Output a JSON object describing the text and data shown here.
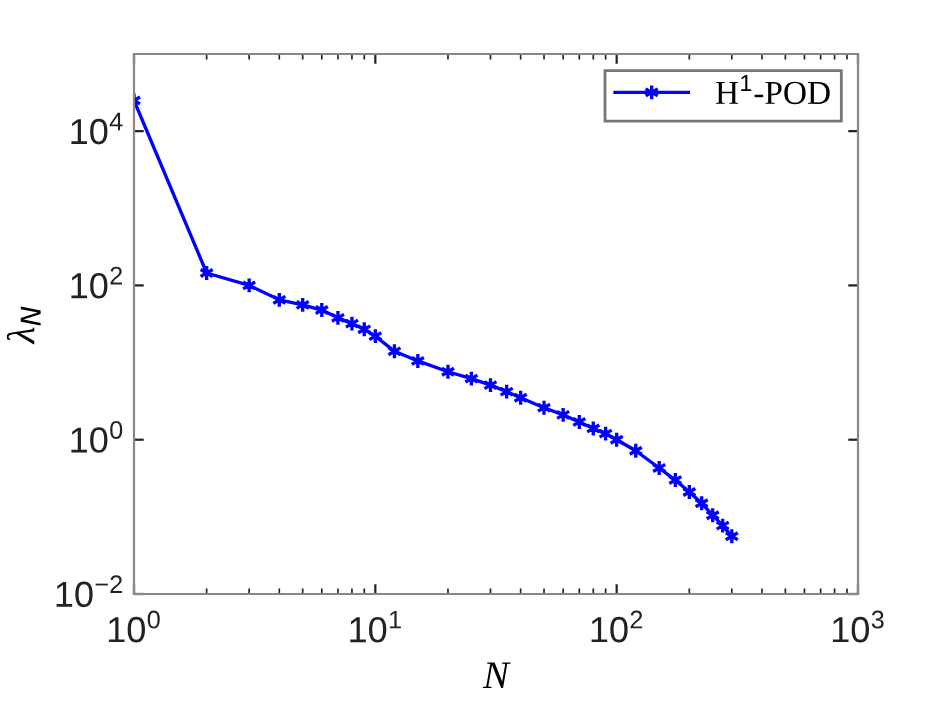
{
  "chart_data": {
    "type": "line",
    "xlabel": "N",
    "ylabel": "λ$_{N}$",
    "log": "xy",
    "legend": "top right",
    "marker": "cross",
    "line_style": "solid",
    "grid": false,
    "xlim": [
      1,
      1000
    ],
    "ylim": [
      0.01,
      100000
    ],
    "xticks": [
      {
        "value": 1,
        "label": "10$^{0}$"
      },
      {
        "value": 10,
        "label": "10$^{1}$"
      },
      {
        "value": 100,
        "label": "10$^{2}$"
      },
      {
        "value": 1000,
        "label": "10$^{3}$"
      }
    ],
    "yticks": [
      {
        "value": 0.01,
        "label": "10$^{−2}$"
      },
      {
        "value": 1,
        "label": "10$^{0}$"
      },
      {
        "value": 100,
        "label": "10$^{2}$"
      },
      {
        "value": 10000,
        "label": "10$^{4}$"
      }
    ],
    "series": [
      {
        "name": "H$^{1}$-POD",
        "color": "#0000ff",
        "x": [
          1,
          2,
          3,
          4,
          5,
          6,
          7,
          8,
          9,
          10,
          12,
          15,
          20,
          25,
          30,
          35,
          40,
          50,
          60,
          70,
          80,
          90,
          100,
          120,
          150,
          175,
          200,
          225,
          250,
          275,
          300
        ],
        "values": [
          25000,
          145,
          100,
          65,
          56,
          48,
          38,
          32,
          27,
          22,
          14,
          10.5,
          7.6,
          6.2,
          5.1,
          4.2,
          3.5,
          2.6,
          2.1,
          1.7,
          1.4,
          1.2,
          1.0,
          0.72,
          0.43,
          0.3,
          0.21,
          0.15,
          0.105,
          0.077,
          0.056
        ]
      }
    ]
  }
}
